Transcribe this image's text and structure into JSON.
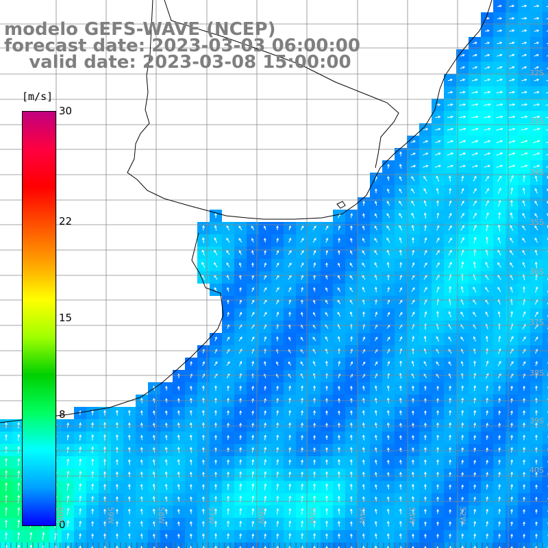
{
  "title": {
    "line1": "modelo GEFS-WAVE (NCEP)",
    "line2": "forecast date: 2023-03-03 06:00:00",
    "line3": "    valid date: 2023-03-08 15:00:00"
  },
  "colorbar": {
    "units": "[m/s]",
    "ticks": [
      {
        "label": "30",
        "value": 30
      },
      {
        "label": "22",
        "value": 22
      },
      {
        "label": "15",
        "value": 15
      },
      {
        "label": "8",
        "value": 8
      },
      {
        "label": "0",
        "value": 0
      }
    ],
    "range": [
      0,
      30
    ],
    "colors": [
      "#0000ff",
      "#00a0ff",
      "#00ffff",
      "#00ff60",
      "#00d000",
      "#a0ff00",
      "#ffff00",
      "#ffa000",
      "#ff5000",
      "#ff0000",
      "#ff0040",
      "#c0007f"
    ]
  },
  "axes": {
    "lat_labels": [
      "32S",
      "33S",
      "34S",
      "35S",
      "36S",
      "37S",
      "38S",
      "39S",
      "40S"
    ],
    "lon_labels": [
      "60W",
      "59W",
      "58W",
      "57W",
      "56W",
      "55W",
      "54W",
      "53W",
      "52W"
    ]
  },
  "colors": {
    "title_text": "#7f7f7f",
    "grid": "#888888",
    "land": "#ffffff",
    "coast": "#000000",
    "arrows": "#ffffff"
  }
}
